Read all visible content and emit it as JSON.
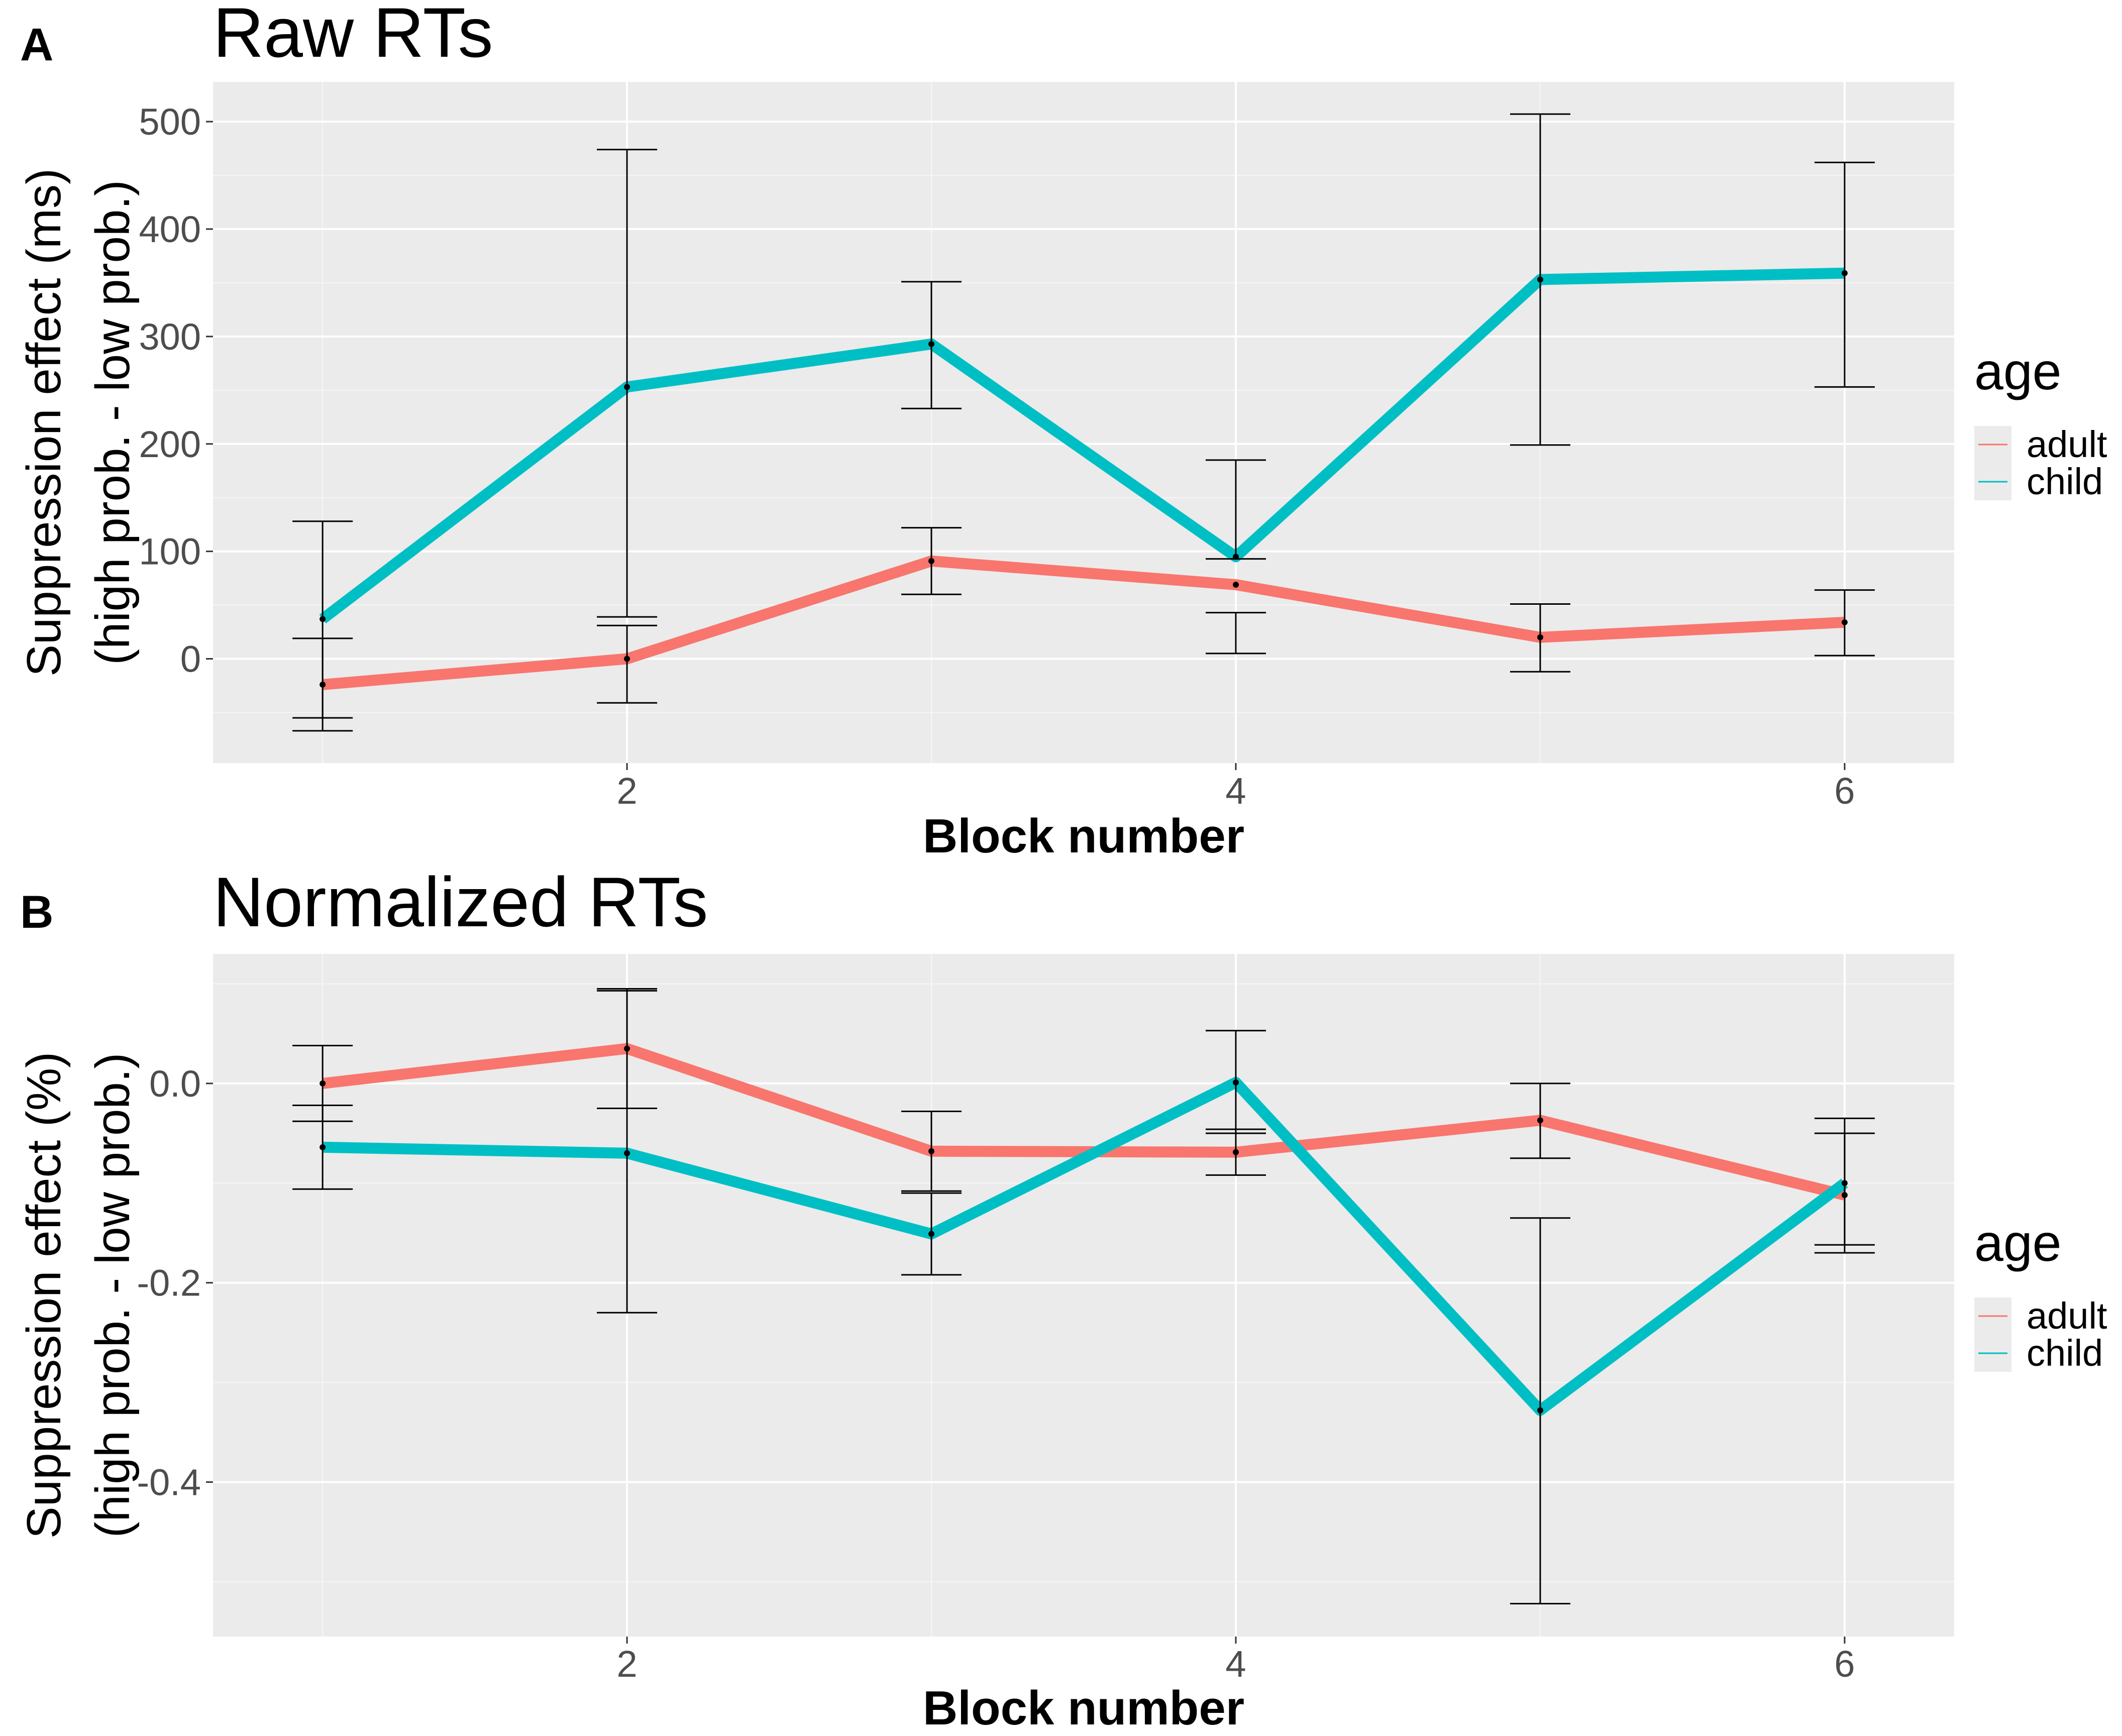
{
  "figure": {
    "series_colors": {
      "adult": "#F8766D",
      "child": "#00BFC4"
    }
  },
  "chart_data": [
    {
      "panel": "A",
      "type": "line",
      "title": "Raw RTs",
      "xlabel": "Block number",
      "ylabel_line1": "Suppression effect (ms)",
      "ylabel_line2": "(high prob. - low prob.)",
      "xlim": [
        0.64,
        6.36
      ],
      "ylim": [
        -97,
        537
      ],
      "x_ticks": [
        2,
        4,
        6
      ],
      "y_ticks": [
        0,
        100,
        200,
        300,
        400,
        500
      ],
      "y_tick_labels": [
        "0",
        "100",
        "200",
        "300",
        "400",
        "500"
      ],
      "grid": true,
      "legend": {
        "title": "age",
        "position": "right",
        "entries": [
          "adult",
          "child"
        ]
      },
      "series": [
        {
          "name": "adult",
          "x": [
            1,
            2,
            3,
            4,
            5,
            6
          ],
          "y": [
            -24,
            0,
            91,
            69,
            20,
            34
          ],
          "err_low": [
            -67,
            -41,
            60,
            5,
            -12,
            3
          ],
          "err_high": [
            19,
            31,
            122,
            43,
            51,
            64
          ]
        },
        {
          "name": "child",
          "x": [
            1,
            2,
            3,
            4,
            5,
            6
          ],
          "y": [
            37,
            253,
            293,
            95,
            353,
            359
          ],
          "err_low": [
            -55,
            39,
            233,
            93,
            199,
            253
          ],
          "err_high": [
            128,
            474,
            351,
            185,
            507,
            462
          ]
        }
      ]
    },
    {
      "panel": "B",
      "type": "line",
      "title": "Normalized RTs",
      "xlabel": "Block number",
      "ylabel_line1": "Suppression effect (%)",
      "ylabel_line2": "(high prob. - low prob.)",
      "xlim": [
        0.64,
        6.36
      ],
      "ylim": [
        -0.555,
        0.13
      ],
      "x_ticks": [
        2,
        4,
        6
      ],
      "y_ticks": [
        0.0,
        -0.2,
        -0.4
      ],
      "y_tick_labels": [
        "0.0",
        "-0.2",
        "-0.4"
      ],
      "grid": true,
      "legend": {
        "title": "age",
        "position": "right",
        "entries": [
          "adult",
          "child"
        ]
      },
      "series": [
        {
          "name": "adult",
          "x": [
            1,
            2,
            3,
            4,
            5,
            6
          ],
          "y": [
            0.0,
            0.035,
            -0.068,
            -0.069,
            -0.037,
            -0.112
          ],
          "err_low": [
            -0.038,
            -0.025,
            -0.108,
            -0.092,
            -0.075,
            -0.162
          ],
          "err_high": [
            0.038,
            0.095,
            -0.028,
            -0.046,
            0.0,
            -0.05
          ]
        },
        {
          "name": "child",
          "x": [
            1,
            2,
            3,
            4,
            5,
            6
          ],
          "y": [
            -0.064,
            -0.07,
            -0.151,
            0.001,
            -0.328,
            -0.1
          ],
          "err_low": [
            -0.106,
            -0.23,
            -0.192,
            -0.05,
            -0.522,
            -0.17
          ],
          "err_high": [
            -0.022,
            0.093,
            -0.11,
            0.053,
            -0.135,
            -0.035
          ]
        }
      ]
    }
  ]
}
